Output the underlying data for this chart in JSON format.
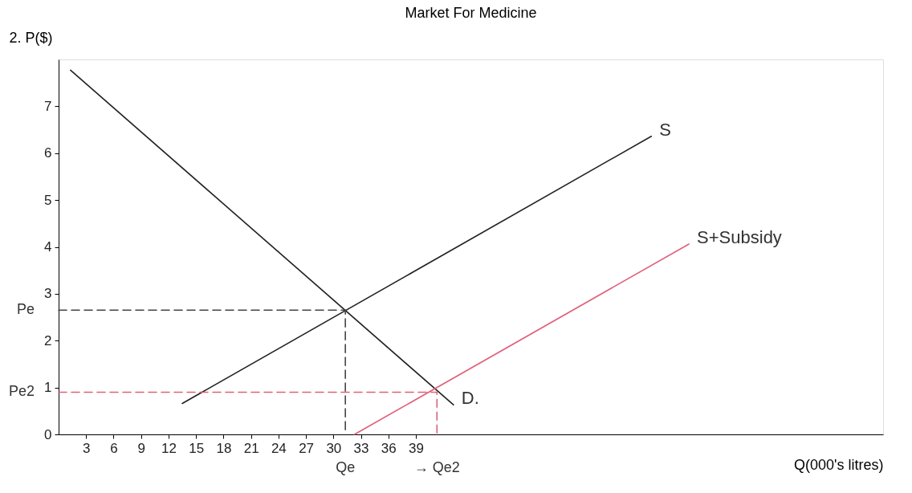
{
  "chart_data": {
    "type": "line",
    "title": "Market For Medicine",
    "ylabel": "2. P($)",
    "xlabel": "Q(000's litres)",
    "xlim": [
      0,
      90
    ],
    "ylim": [
      0,
      8
    ],
    "xticks": [
      3,
      6,
      9,
      12,
      15,
      18,
      21,
      24,
      27,
      30,
      33,
      36,
      39
    ],
    "yticks": [
      0,
      1,
      2,
      3,
      4,
      5,
      6,
      7
    ],
    "grid": false,
    "marker": "none",
    "series": [
      {
        "color": "#222222",
        "line_style": "solid",
        "x": [
          1.3,
          43.1
        ],
        "values": [
          7.77,
          0.63
        ]
      },
      {
        "color": "#222222",
        "line_style": "solid",
        "x": [
          13.5,
          64.7
        ],
        "values": [
          0.66,
          6.36
        ]
      },
      {
        "color": "#e0607a",
        "line_style": "solid",
        "x": [
          32.3,
          68.8
        ],
        "values": [
          0,
          4.06
        ]
      },
      {
        "color": "#444444",
        "line_style": "dashed",
        "x": [
          0,
          31.3,
          31.3
        ],
        "values": [
          2.65,
          2.65,
          0
        ]
      },
      {
        "color": "#e0607a",
        "line_style": "dashed",
        "x": [
          0,
          41.3,
          41.3
        ],
        "values": [
          0.9,
          0.9,
          0
        ]
      }
    ],
    "annotations": [
      {
        "text": "S",
        "x": 64.7,
        "y": 6.36
      },
      {
        "text": "D.",
        "x": 43.1,
        "y": 0.63
      },
      {
        "text": "S+Subsidy",
        "x": 68.8,
        "y": 4.06
      },
      {
        "text": "Pe",
        "x": 0,
        "y": 2.65
      },
      {
        "text": "Pe2",
        "x": 0,
        "y": 0.9
      },
      {
        "text": "Qe",
        "x": 31.3,
        "y": 0
      },
      {
        "text": "→ Qe2",
        "x": 41.3,
        "y": 0
      }
    ]
  }
}
